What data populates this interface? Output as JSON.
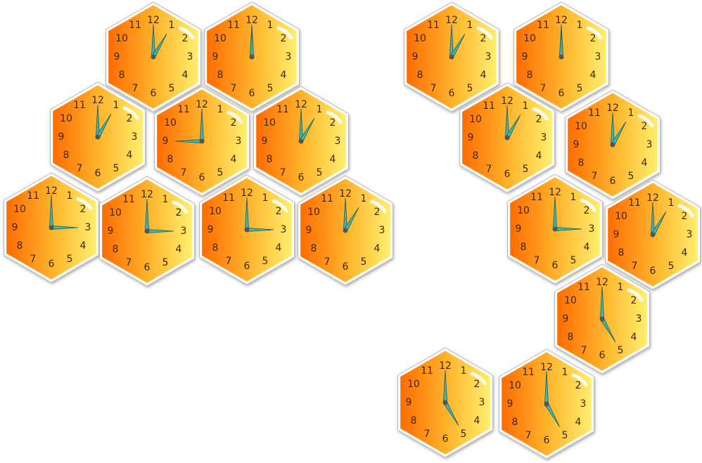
{
  "colors": {
    "tile_left": "#ff6a00",
    "tile_mid": "#ffb830",
    "tile_right": "#fff070",
    "tile_border": "#ffffff",
    "tile_shadow": "#b9b9b9",
    "hand": "#3fb6b0",
    "hand_outline": "#1e5c5a",
    "hub": "#555555",
    "shine": "#ffffff"
  },
  "dial_numbers": [
    "12",
    "1",
    "2",
    "3",
    "4",
    "5",
    "6",
    "7",
    "8",
    "9",
    "10",
    "11"
  ],
  "left_group": {
    "tiles": [
      {
        "id": "A1",
        "hour": 1,
        "minute": 0
      },
      {
        "id": "A2",
        "hour": 12,
        "minute": 0
      },
      {
        "id": "A3",
        "hour": 1,
        "minute": 0
      },
      {
        "id": "A4",
        "hour": 9,
        "minute": 0
      },
      {
        "id": "A5",
        "hour": 1,
        "minute": 0
      },
      {
        "id": "A6",
        "hour": 3,
        "minute": 0
      },
      {
        "id": "A7",
        "hour": 3,
        "minute": 0
      },
      {
        "id": "A8",
        "hour": 3,
        "minute": 0
      },
      {
        "id": "A9",
        "hour": 1,
        "minute": 0
      }
    ]
  },
  "right_group": {
    "tiles": [
      {
        "id": "B1",
        "hour": 1,
        "minute": 0
      },
      {
        "id": "B2",
        "hour": 12,
        "minute": 0
      },
      {
        "id": "B3",
        "hour": 1,
        "minute": 0
      },
      {
        "id": "B4",
        "hour": 1,
        "minute": 0
      },
      {
        "id": "B5",
        "hour": 3,
        "minute": 0
      },
      {
        "id": "B6",
        "hour": 1,
        "minute": 0
      },
      {
        "id": "B7",
        "hour": 5,
        "minute": 0
      },
      {
        "id": "B8",
        "hour": 5,
        "minute": 0
      },
      {
        "id": "B9",
        "hour": 5,
        "minute": 0
      }
    ]
  }
}
